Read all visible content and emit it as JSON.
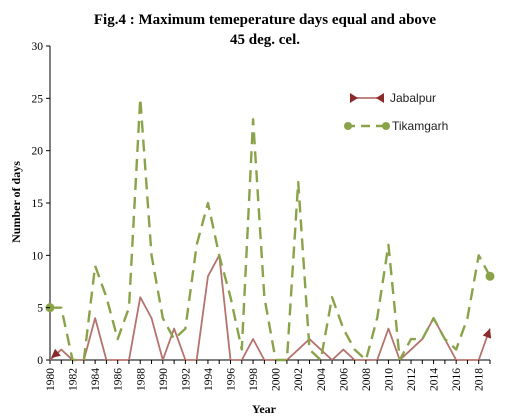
{
  "chart_data": {
    "type": "line",
    "title_line1": "Fig.4 : Maximum temeperature days equal and above",
    "title_line2": "45 deg. cel.",
    "xlabel": "Year",
    "ylabel": "Number of days",
    "ylim": [
      0,
      30
    ],
    "yticks": [
      0,
      5,
      10,
      15,
      20,
      25,
      30
    ],
    "xlim": [
      1980,
      2019
    ],
    "xticks": [
      1980,
      1982,
      1984,
      1986,
      1988,
      1990,
      1992,
      1994,
      1996,
      1998,
      2000,
      2002,
      2004,
      2006,
      2008,
      2010,
      2012,
      2014,
      2016,
      2018
    ],
    "grid": false,
    "legend_position": "top-right",
    "x": [
      1980,
      1981,
      1982,
      1983,
      1984,
      1985,
      1986,
      1987,
      1988,
      1989,
      1990,
      1991,
      1992,
      1993,
      1994,
      1995,
      1996,
      1997,
      1998,
      1999,
      2000,
      2001,
      2002,
      2003,
      2004,
      2005,
      2006,
      2007,
      2008,
      2009,
      2010,
      2011,
      2012,
      2013,
      2014,
      2015,
      2016,
      2017,
      2018,
      2019
    ],
    "series": [
      {
        "name": "Jabalpur",
        "color": "#b5736e",
        "style": "solid",
        "values": [
          0,
          1,
          0,
          0,
          4,
          0,
          0,
          0,
          6,
          4,
          0,
          3,
          0,
          0,
          8,
          10,
          0,
          0,
          2,
          0,
          0,
          0,
          1,
          2,
          1,
          0,
          1,
          0,
          0,
          0,
          3,
          0,
          1,
          2,
          4,
          2,
          0,
          0,
          0,
          3
        ]
      },
      {
        "name": "Tikamgarh",
        "color": "#8aa34a",
        "style": "dashed",
        "values": [
          5,
          5,
          0,
          0,
          9,
          6,
          2,
          5,
          25,
          10,
          4,
          2,
          3,
          11,
          15,
          10,
          6,
          1,
          23,
          6,
          0,
          0,
          17,
          1,
          0,
          6,
          3,
          1,
          0,
          4,
          11,
          0,
          2,
          2,
          4,
          2,
          1,
          4,
          10,
          8
        ]
      }
    ]
  }
}
